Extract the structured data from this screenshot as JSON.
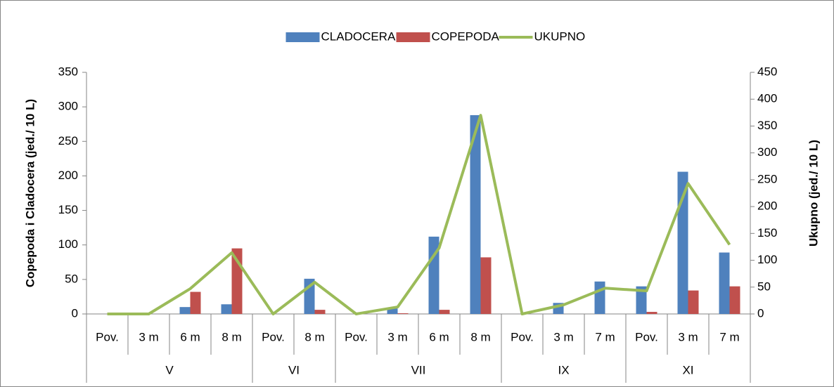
{
  "chart_data": {
    "type": "bar-line",
    "legend": "top",
    "y_label": "Copepoda i Cladocera  (jed./ 10 L)",
    "y2_label": "Ukupno (jed./ 10 L)",
    "groups": [
      {
        "name": "V",
        "categories": [
          "Pov.",
          "3 m",
          "6 m",
          "8 m"
        ]
      },
      {
        "name": "VI",
        "categories": [
          "Pov.",
          "8 m"
        ]
      },
      {
        "name": "VII",
        "categories": [
          "Pov.",
          "3 m",
          "6 m",
          "8 m"
        ]
      },
      {
        "name": "IX",
        "categories": [
          "Pov.",
          "3 m",
          "7 m"
        ]
      },
      {
        "name": "XI",
        "categories": [
          "Pov.",
          "3 m",
          "7 m"
        ]
      }
    ],
    "series": [
      {
        "name": "CLADOCERA",
        "type": "bar",
        "color": "#4f81bd",
        "values": [
          0,
          0,
          10,
          14,
          0,
          51,
          0,
          8,
          112,
          288,
          0,
          16,
          47,
          40,
          206,
          89
        ]
      },
      {
        "name": "COPEPODA",
        "type": "bar",
        "color": "#c0504d",
        "values": [
          0,
          0,
          32,
          95,
          0,
          6,
          0,
          1,
          6,
          82,
          0,
          0,
          0,
          3,
          34,
          40
        ]
      },
      {
        "name": "UKUPNO",
        "type": "line",
        "axis": "y2",
        "color": "#9bbb59",
        "values": [
          0,
          0,
          47,
          114,
          0,
          59,
          0,
          13,
          123,
          370,
          0,
          17,
          48,
          43,
          243,
          129
        ]
      }
    ],
    "ylim": [
      0,
      350
    ],
    "yticks": [
      0,
      50,
      100,
      150,
      200,
      250,
      300,
      350
    ],
    "y2lim": [
      0,
      450
    ],
    "y2ticks": [
      0,
      50,
      100,
      150,
      200,
      250,
      300,
      350,
      400,
      450
    ]
  }
}
